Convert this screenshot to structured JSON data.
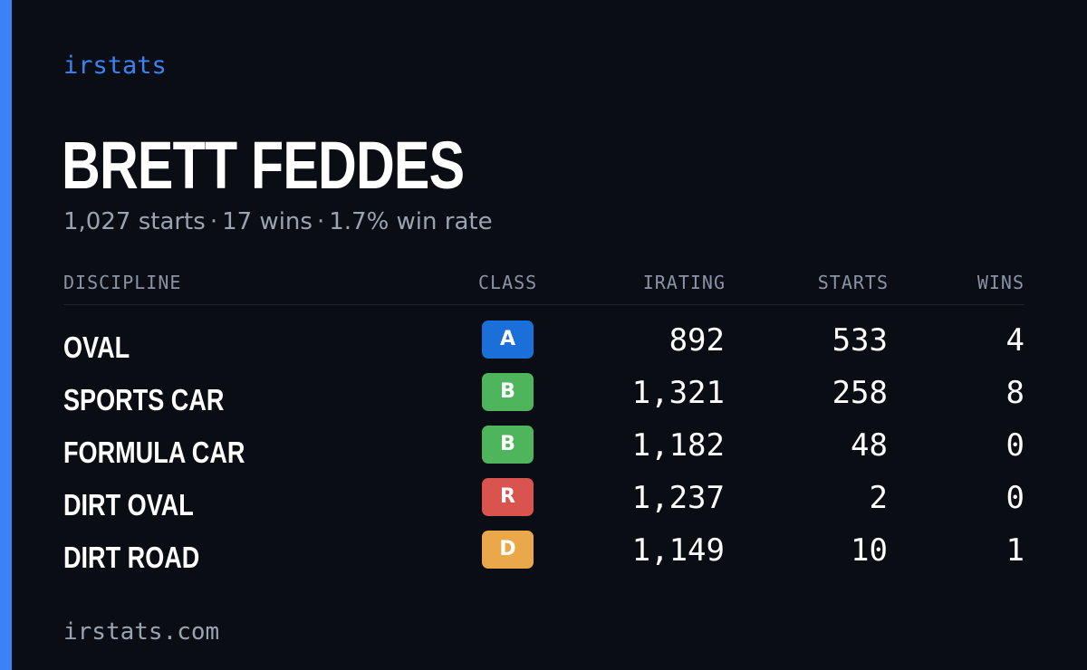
{
  "brand": "irstats",
  "driver": {
    "name": "BRETT FEDDES",
    "starts": "1,027 starts",
    "wins": "17 wins",
    "win_rate": "1.7% win rate",
    "separator": "·"
  },
  "table": {
    "headers": {
      "discipline": "DISCIPLINE",
      "class": "CLASS",
      "irating": "IRATING",
      "starts": "STARTS",
      "wins": "WINS"
    },
    "rows": [
      {
        "discipline": "OVAL",
        "class": "A",
        "class_color": "#1a6fd8",
        "irating": "892",
        "starts": "533",
        "wins": "4"
      },
      {
        "discipline": "SPORTS CAR",
        "class": "B",
        "class_color": "#4fb55c",
        "irating": "1,321",
        "starts": "258",
        "wins": "8"
      },
      {
        "discipline": "FORMULA CAR",
        "class": "B",
        "class_color": "#4fb55c",
        "irating": "1,182",
        "starts": "48",
        "wins": "0"
      },
      {
        "discipline": "DIRT OVAL",
        "class": "R",
        "class_color": "#d9534f",
        "irating": "1,237",
        "starts": "2",
        "wins": "0"
      },
      {
        "discipline": "DIRT ROAD",
        "class": "D",
        "class_color": "#eaa84a",
        "irating": "1,149",
        "starts": "10",
        "wins": "1"
      }
    ]
  },
  "footer": "irstats.com",
  "colors": {
    "background": "#0b0d14",
    "accent": "#3b82f6",
    "muted_text": "#9aa3b2"
  }
}
